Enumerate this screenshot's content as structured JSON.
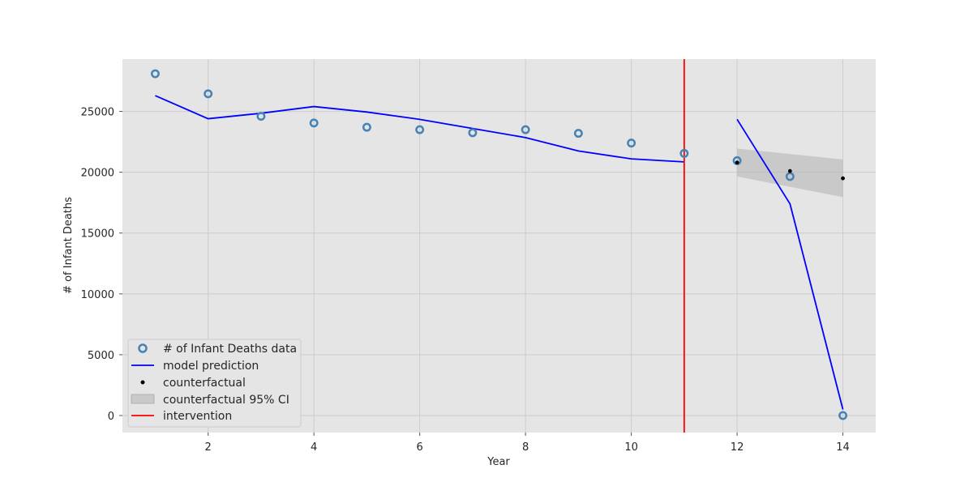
{
  "chart_data": {
    "type": "line",
    "title": "",
    "xlabel": "Year",
    "ylabel": "# of Infant Deaths",
    "xlim": [
      0.38,
      14.62
    ],
    "ylim": [
      -1400,
      29300
    ],
    "xticks": [
      2,
      4,
      6,
      8,
      10,
      12,
      14
    ],
    "yticks": [
      0,
      5000,
      10000,
      15000,
      20000,
      25000
    ],
    "grid": true,
    "background": "#e5e5e5",
    "grid_color": "#cccccc",
    "legend_position": "lower-left",
    "series": [
      {
        "name": "# of Infant Deaths data",
        "kind": "scatter-open-circle",
        "color": "#4682b4",
        "x": [
          1,
          2,
          3,
          4,
          5,
          6,
          7,
          8,
          9,
          10,
          11,
          12,
          13,
          14
        ],
        "y": [
          28100,
          26450,
          24600,
          24050,
          23700,
          23500,
          23250,
          23500,
          23200,
          22400,
          21550,
          20950,
          19650,
          0
        ]
      },
      {
        "name": "model prediction",
        "kind": "line",
        "color": "#0000ff",
        "segments": [
          {
            "x": [
              1,
              2,
              3,
              4,
              5,
              6,
              7,
              8,
              9,
              10,
              11
            ],
            "y": [
              26300,
              24400,
              24850,
              25400,
              24950,
              24350,
              23600,
              22850,
              21750,
              21100,
              20850
            ]
          },
          {
            "x": [
              12,
              13,
              14
            ],
            "y": [
              24350,
              17400,
              500
            ]
          }
        ]
      },
      {
        "name": "counterfactual",
        "kind": "scatter-dot",
        "color": "#000000",
        "x": [
          12,
          13,
          14
        ],
        "y": [
          20800,
          20100,
          19500
        ]
      },
      {
        "name": "counterfactual 95% CI",
        "kind": "band",
        "color": "#b3b3b3",
        "x": [
          12,
          13,
          14
        ],
        "lower": [
          19650,
          18800,
          17950
        ],
        "upper": [
          21950,
          21500,
          21050
        ]
      },
      {
        "name": "intervention",
        "kind": "vline",
        "color": "#ff0000",
        "x": 11
      }
    ]
  }
}
